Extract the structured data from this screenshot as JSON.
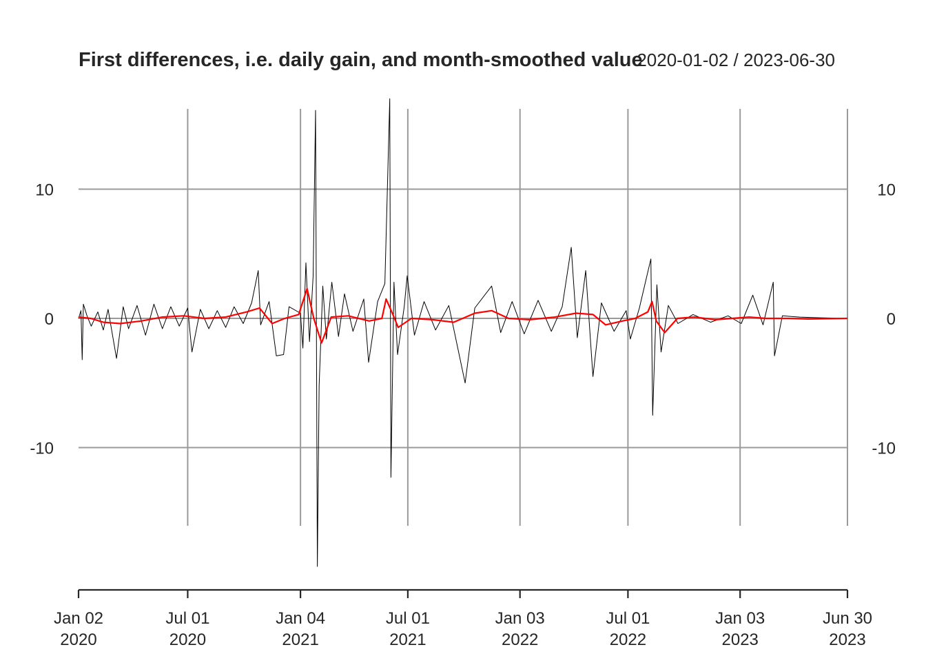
{
  "chart_data": {
    "type": "line",
    "title": "First differences, i.e. daily gain, and month-smoothed value",
    "date_range": "2020-01-02 / 2023-06-30",
    "xlabel": "",
    "ylabel": "",
    "xlim": [
      "2020-01-02",
      "2023-06-30"
    ],
    "ylim": [
      -19,
      17
    ],
    "grid": true,
    "y_ticks": [
      {
        "value": 10,
        "label": "10"
      },
      {
        "value": 0,
        "label": "0"
      },
      {
        "value": -10,
        "label": "-10"
      }
    ],
    "x_ticks": [
      {
        "date": "2020-01-02",
        "line1": "Jan 02",
        "line2": "2020"
      },
      {
        "date": "2020-07-01",
        "line1": "Jul 01",
        "line2": "2020"
      },
      {
        "date": "2021-01-04",
        "line1": "Jan 04",
        "line2": "2021"
      },
      {
        "date": "2021-07-01",
        "line1": "Jul 01",
        "line2": "2021"
      },
      {
        "date": "2022-01-03",
        "line1": "Jan 03",
        "line2": "2022"
      },
      {
        "date": "2022-07-01",
        "line1": "Jul 01",
        "line2": "2022"
      },
      {
        "date": "2023-01-03",
        "line1": "Jan 03",
        "line2": "2023"
      },
      {
        "date": "2023-06-30",
        "line1": "Jun 30",
        "line2": "2023"
      }
    ],
    "series": [
      {
        "color": "#000000",
        "points": [
          [
            "2020-01-02",
            0.0
          ],
          [
            "2020-01-06",
            0.6
          ],
          [
            "2020-01-08",
            -3.2
          ],
          [
            "2020-01-10",
            1.1
          ],
          [
            "2020-01-16",
            0.2
          ],
          [
            "2020-01-23",
            -0.6
          ],
          [
            "2020-02-03",
            0.5
          ],
          [
            "2020-02-12",
            -0.9
          ],
          [
            "2020-02-20",
            0.7
          ],
          [
            "2020-03-05",
            -3.1
          ],
          [
            "2020-03-16",
            0.9
          ],
          [
            "2020-03-25",
            -0.8
          ],
          [
            "2020-04-08",
            1.0
          ],
          [
            "2020-04-22",
            -1.3
          ],
          [
            "2020-05-06",
            1.1
          ],
          [
            "2020-05-20",
            -0.8
          ],
          [
            "2020-06-03",
            0.9
          ],
          [
            "2020-06-17",
            -0.6
          ],
          [
            "2020-07-01",
            0.8
          ],
          [
            "2020-07-08",
            -2.6
          ],
          [
            "2020-07-22",
            0.7
          ],
          [
            "2020-08-05",
            -0.8
          ],
          [
            "2020-08-19",
            0.6
          ],
          [
            "2020-09-02",
            -0.7
          ],
          [
            "2020-09-16",
            0.9
          ],
          [
            "2020-10-01",
            -0.4
          ],
          [
            "2020-10-15",
            1.2
          ],
          [
            "2020-10-26",
            3.7
          ],
          [
            "2020-10-30",
            -0.5
          ],
          [
            "2020-11-13",
            1.3
          ],
          [
            "2020-11-25",
            -2.9
          ],
          [
            "2020-12-07",
            -2.8
          ],
          [
            "2020-12-16",
            0.9
          ],
          [
            "2021-01-04",
            0.4
          ],
          [
            "2021-01-08",
            -2.3
          ],
          [
            "2021-01-13",
            4.3
          ],
          [
            "2021-01-19",
            -1.8
          ],
          [
            "2021-01-25",
            3.3
          ],
          [
            "2021-01-29",
            16.1
          ],
          [
            "2021-02-01",
            -19.2
          ],
          [
            "2021-02-04",
            -5.2
          ],
          [
            "2021-02-10",
            2.5
          ],
          [
            "2021-02-16",
            -1.6
          ],
          [
            "2021-02-25",
            2.8
          ],
          [
            "2021-03-08",
            -1.4
          ],
          [
            "2021-03-18",
            1.9
          ],
          [
            "2021-04-01",
            -1.0
          ],
          [
            "2021-04-19",
            1.5
          ],
          [
            "2021-04-27",
            -3.4
          ],
          [
            "2021-05-12",
            1.3
          ],
          [
            "2021-05-24",
            2.7
          ],
          [
            "2021-06-01",
            17.0
          ],
          [
            "2021-06-03",
            -12.3
          ],
          [
            "2021-06-08",
            2.8
          ],
          [
            "2021-06-14",
            -2.8
          ],
          [
            "2021-06-25",
            0.9
          ],
          [
            "2021-06-30",
            3.3
          ],
          [
            "2021-07-12",
            -1.3
          ],
          [
            "2021-07-28",
            1.3
          ],
          [
            "2021-08-16",
            -0.9
          ],
          [
            "2021-09-07",
            1.0
          ],
          [
            "2021-10-04",
            -5.0
          ],
          [
            "2021-10-20",
            0.8
          ],
          [
            "2021-11-17",
            2.5
          ],
          [
            "2021-12-02",
            -1.1
          ],
          [
            "2021-12-21",
            1.3
          ],
          [
            "2022-01-10",
            -1.2
          ],
          [
            "2022-02-02",
            1.4
          ],
          [
            "2022-02-24",
            -1.0
          ],
          [
            "2022-03-14",
            0.9
          ],
          [
            "2022-03-29",
            5.5
          ],
          [
            "2022-04-08",
            -1.5
          ],
          [
            "2022-04-22",
            3.7
          ],
          [
            "2022-05-04",
            -4.5
          ],
          [
            "2022-05-18",
            1.2
          ],
          [
            "2022-06-08",
            -1.0
          ],
          [
            "2022-06-28",
            0.6
          ],
          [
            "2022-07-05",
            -1.6
          ],
          [
            "2022-07-20",
            0.8
          ],
          [
            "2022-08-01",
            3.2
          ],
          [
            "2022-08-08",
            4.6
          ],
          [
            "2022-08-11",
            -7.5
          ],
          [
            "2022-08-18",
            2.6
          ],
          [
            "2022-08-25",
            -2.6
          ],
          [
            "2022-09-06",
            1.0
          ],
          [
            "2022-09-22",
            -0.4
          ],
          [
            "2022-10-17",
            0.3
          ],
          [
            "2022-11-15",
            -0.3
          ],
          [
            "2022-12-14",
            0.2
          ],
          [
            "2023-01-05",
            -0.4
          ],
          [
            "2023-01-24",
            1.8
          ],
          [
            "2023-02-10",
            -0.5
          ],
          [
            "2023-02-27",
            2.8
          ],
          [
            "2023-03-01",
            -2.9
          ],
          [
            "2023-03-14",
            0.2
          ],
          [
            "2023-04-12",
            0.1
          ],
          [
            "2023-05-15",
            0.05
          ],
          [
            "2023-06-30",
            0.0
          ]
        ]
      },
      {
        "color": "#ff0000",
        "points": [
          [
            "2020-01-02",
            0.1
          ],
          [
            "2020-01-22",
            0.0
          ],
          [
            "2020-02-12",
            -0.3
          ],
          [
            "2020-03-11",
            -0.4
          ],
          [
            "2020-04-15",
            -0.2
          ],
          [
            "2020-05-20",
            0.1
          ],
          [
            "2020-06-24",
            0.2
          ],
          [
            "2020-07-29",
            0.0
          ],
          [
            "2020-09-02",
            0.1
          ],
          [
            "2020-10-07",
            0.5
          ],
          [
            "2020-10-28",
            0.8
          ],
          [
            "2020-11-18",
            -0.4
          ],
          [
            "2020-12-09",
            0.0
          ],
          [
            "2021-01-01",
            0.3
          ],
          [
            "2021-01-15",
            2.3
          ],
          [
            "2021-01-26",
            0.0
          ],
          [
            "2021-02-08",
            -1.9
          ],
          [
            "2021-02-24",
            0.1
          ],
          [
            "2021-03-24",
            0.2
          ],
          [
            "2021-04-28",
            -0.2
          ],
          [
            "2021-05-19",
            0.0
          ],
          [
            "2021-05-26",
            1.5
          ],
          [
            "2021-06-08",
            0.1
          ],
          [
            "2021-06-15",
            -0.7
          ],
          [
            "2021-07-07",
            0.0
          ],
          [
            "2021-08-11",
            -0.1
          ],
          [
            "2021-09-15",
            -0.3
          ],
          [
            "2021-10-20",
            0.4
          ],
          [
            "2021-11-17",
            0.6
          ],
          [
            "2021-12-15",
            0.0
          ],
          [
            "2022-01-19",
            -0.1
          ],
          [
            "2022-03-02",
            0.1
          ],
          [
            "2022-04-06",
            0.4
          ],
          [
            "2022-05-04",
            0.3
          ],
          [
            "2022-05-25",
            -0.5
          ],
          [
            "2022-06-22",
            -0.2
          ],
          [
            "2022-07-13",
            0.0
          ],
          [
            "2022-08-03",
            0.5
          ],
          [
            "2022-08-10",
            1.3
          ],
          [
            "2022-08-17",
            -0.2
          ],
          [
            "2022-08-31",
            -1.1
          ],
          [
            "2022-09-21",
            0.0
          ],
          [
            "2022-10-19",
            0.1
          ],
          [
            "2022-11-23",
            -0.1
          ],
          [
            "2022-12-21",
            0.0
          ],
          [
            "2023-01-18",
            0.1
          ],
          [
            "2023-02-15",
            0.0
          ],
          [
            "2023-03-22",
            0.0
          ],
          [
            "2023-04-26",
            -0.05
          ],
          [
            "2023-06-30",
            0.0
          ]
        ]
      }
    ]
  }
}
